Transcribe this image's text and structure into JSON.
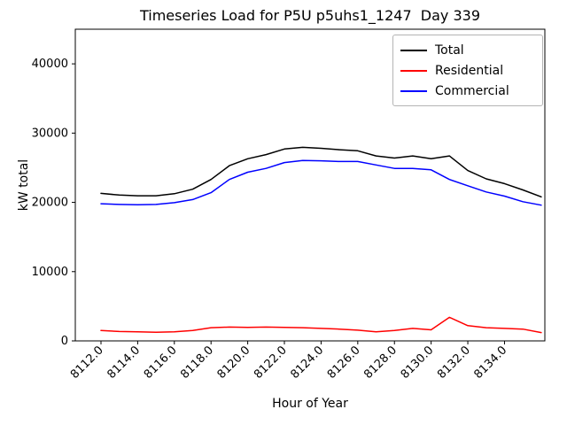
{
  "chart_data": {
    "type": "line",
    "title": "Timeseries Load for P5U p5uhs1_1247  Day 339",
    "xlabel": "Hour of Year",
    "ylabel": "kW total",
    "xlim": [
      8110.6,
      8136.2
    ],
    "ylim": [
      0,
      45000
    ],
    "xticks": [
      8112,
      8114,
      8116,
      8118,
      8120,
      8122,
      8124,
      8126,
      8128,
      8130,
      8132,
      8134
    ],
    "xtick_labels": [
      "8112.0",
      "8114.0",
      "8116.0",
      "8118.0",
      "8120.0",
      "8122.0",
      "8124.0",
      "8126.0",
      "8128.0",
      "8130.0",
      "8132.0",
      "8134.0"
    ],
    "yticks": [
      0,
      10000,
      20000,
      30000,
      40000
    ],
    "ytick_labels": [
      "0",
      "10000",
      "20000",
      "30000",
      "40000"
    ],
    "grid": false,
    "legend_position": "upper right",
    "x": [
      8112,
      8113,
      8114,
      8115,
      8116,
      8117,
      8118,
      8119,
      8120,
      8121,
      8122,
      8123,
      8124,
      8125,
      8126,
      8127,
      8128,
      8129,
      8130,
      8131,
      8132,
      8133,
      8134,
      8135,
      8136
    ],
    "series": [
      {
        "name": "Total",
        "color": "#000000",
        "values": [
          21300,
          21050,
          20950,
          20950,
          21250,
          21900,
          23300,
          25300,
          26300,
          26900,
          27700,
          27950,
          27800,
          27600,
          27450,
          26700,
          26400,
          26700,
          26300,
          26700,
          24600,
          23400,
          22700,
          21800,
          20800
        ]
      },
      {
        "name": "Residential",
        "color": "#ff0000",
        "values": [
          1500,
          1350,
          1300,
          1250,
          1300,
          1500,
          1900,
          2000,
          1950,
          2000,
          1950,
          1900,
          1800,
          1700,
          1550,
          1300,
          1500,
          1800,
          1600,
          3400,
          2200,
          1900,
          1800,
          1700,
          1200
        ]
      },
      {
        "name": "Commercial",
        "color": "#0000ff",
        "values": [
          19800,
          19700,
          19650,
          19700,
          19950,
          20400,
          21400,
          23300,
          24350,
          24900,
          25750,
          26050,
          26000,
          25900,
          25900,
          25400,
          24900,
          24900,
          24700,
          23300,
          22400,
          21500,
          20900,
          20100,
          19600
        ]
      }
    ]
  }
}
